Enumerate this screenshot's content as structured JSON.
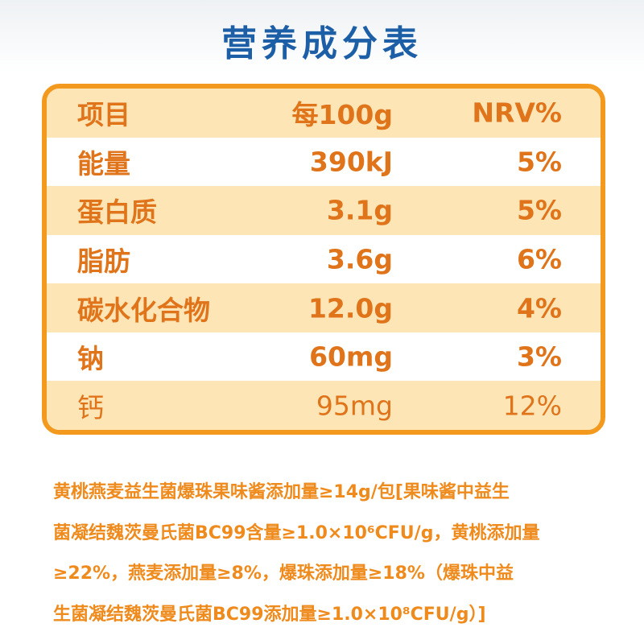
{
  "title": "营养成分表",
  "table": {
    "header": [
      "项目",
      "每100g",
      "NRV%"
    ],
    "rows": [
      [
        "能量",
        "390kJ",
        "5%"
      ],
      [
        "蛋白质",
        "3.1g",
        "5%"
      ],
      [
        "脂肪",
        "3.6g",
        "6%"
      ],
      [
        "碳水化合物",
        "12.0g",
        "4%"
      ],
      [
        "钠",
        "60mg",
        "3%"
      ],
      [
        "钙",
        "95mg",
        "12%"
      ]
    ]
  },
  "footnote": {
    "lines": [
      "黄桃燕麦益生菌爆珠果味酱添加量≥14g/包[果味酱中益生",
      "菌凝结魏茨曼氏菌BC99含量≥1.0×10⁶CFU/g，黄桃添加量",
      "≥22%，燕麦添加量≥8%，爆珠添加量≥18%（爆珠中益",
      "生菌凝结魏茨曼氏菌BC99添加量≥1.0×10⁸CFU/g）]"
    ]
  }
}
